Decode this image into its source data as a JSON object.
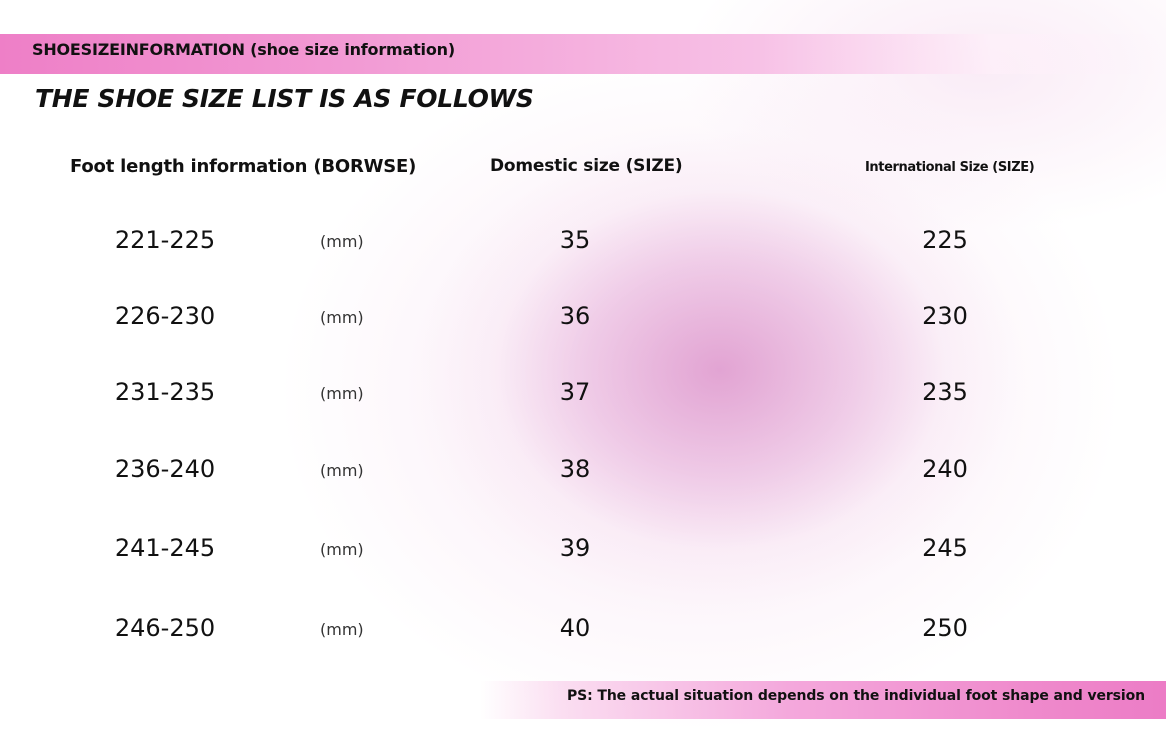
{
  "banner": {
    "title": "SHOESIZEINFORMATION (shoe size information)"
  },
  "heading": "THE SHOE SIZE LIST IS AS FOLLOWS",
  "columns": {
    "foot_length": "Foot length information (BORWSE)",
    "domestic": "Domestic size (SIZE)",
    "international": "International Size (SIZE)"
  },
  "rows": [
    {
      "range": "221-225",
      "unit": "(mm)",
      "domestic": "35",
      "international": "225"
    },
    {
      "range": "226-230",
      "unit": "(mm)",
      "domestic": "36",
      "international": "230"
    },
    {
      "range": "231-235",
      "unit": "(mm)",
      "domestic": "37",
      "international": "235"
    },
    {
      "range": "236-240",
      "unit": "(mm)",
      "domestic": "38",
      "international": "240"
    },
    {
      "range": "241-245",
      "unit": "(mm)",
      "domestic": "39",
      "international": "245"
    },
    {
      "range": "246-250",
      "unit": "(mm)",
      "domestic": "40",
      "international": "250"
    }
  ],
  "footer": {
    "note": "PS: The actual situation depends on the individual foot shape and version"
  },
  "colors": {
    "accent_pink": "#ee7fc7",
    "glow_pink": "#de98cd",
    "text": "#111111"
  }
}
